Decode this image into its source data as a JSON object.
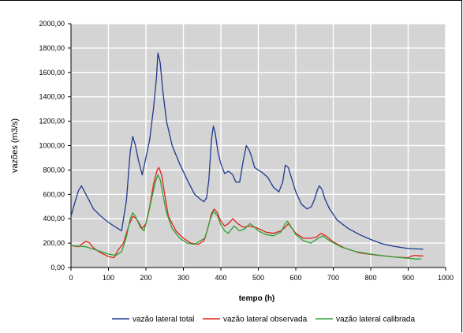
{
  "chart_data": {
    "type": "line",
    "xlabel": "tempo (h)",
    "ylabel": "vazões (m3/s)",
    "xlim": [
      0,
      1000
    ],
    "ylim": [
      0,
      2000
    ],
    "x_ticks": [
      "0",
      "100",
      "200",
      "300",
      "400",
      "500",
      "600",
      "700",
      "800",
      "900",
      "1000"
    ],
    "y_ticks": [
      "0,00",
      "200,00",
      "400,00",
      "600,00",
      "800,00",
      "1000,00",
      "1200,00",
      "1400,00",
      "1600,00",
      "1800,00",
      "2000,00"
    ],
    "grid": true,
    "legend_position": "bottom",
    "series": [
      {
        "name": "vazão lateral total",
        "color": "#1f3a8f",
        "x": [
          0,
          10,
          20,
          28,
          40,
          60,
          80,
          100,
          120,
          135,
          148,
          158,
          165,
          172,
          180,
          190,
          200,
          210,
          220,
          228,
          232,
          238,
          245,
          255,
          270,
          290,
          310,
          330,
          345,
          355,
          362,
          368,
          375,
          380,
          385,
          392,
          400,
          410,
          420,
          432,
          440,
          450,
          460,
          468,
          476,
          483,
          490,
          500,
          510,
          525,
          540,
          555,
          565,
          572,
          580,
          590,
          600,
          615,
          630,
          642,
          650,
          658,
          663,
          670,
          678,
          690,
          710,
          740,
          770,
          800,
          830,
          860,
          890,
          910,
          925,
          940
        ],
        "y": [
          420,
          530,
          630,
          670,
          600,
          480,
          420,
          370,
          330,
          300,
          550,
          950,
          1075,
          1000,
          880,
          760,
          900,
          1050,
          1300,
          1550,
          1760,
          1680,
          1450,
          1200,
          1000,
          850,
          720,
          600,
          560,
          540,
          570,
          720,
          1050,
          1160,
          1100,
          950,
          850,
          770,
          790,
          760,
          700,
          700,
          880,
          1000,
          960,
          900,
          820,
          800,
          780,
          740,
          660,
          620,
          700,
          840,
          820,
          720,
          620,
          520,
          480,
          500,
          560,
          640,
          670,
          640,
          560,
          480,
          390,
          320,
          270,
          230,
          195,
          175,
          160,
          155,
          152,
          150
        ]
      },
      {
        "name": "vazão lateral observada",
        "color": "#e2221b",
        "x": [
          0,
          20,
          30,
          40,
          50,
          60,
          80,
          100,
          115,
          125,
          140,
          155,
          165,
          175,
          190,
          200,
          210,
          220,
          230,
          235,
          242,
          250,
          260,
          280,
          300,
          320,
          340,
          355,
          365,
          375,
          382,
          390,
          400,
          410,
          420,
          432,
          445,
          460,
          475,
          490,
          500,
          520,
          540,
          560,
          572,
          580,
          590,
          600,
          620,
          640,
          655,
          668,
          680,
          700,
          730,
          770,
          820,
          870,
          900,
          910,
          920,
          930,
          940
        ],
        "y": [
          180,
          170,
          195,
          215,
          200,
          160,
          120,
          90,
          80,
          140,
          200,
          350,
          420,
          400,
          320,
          360,
          500,
          680,
          800,
          820,
          760,
          600,
          420,
          300,
          240,
          200,
          190,
          220,
          320,
          440,
          480,
          450,
          380,
          340,
          360,
          400,
          360,
          330,
          340,
          330,
          320,
          290,
          280,
          300,
          330,
          360,
          320,
          280,
          240,
          240,
          250,
          280,
          260,
          210,
          160,
          120,
          100,
          85,
          80,
          95,
          100,
          95,
          95
        ]
      },
      {
        "name": "vazão lateral calibrada",
        "color": "#2ea236",
        "x": [
          0,
          20,
          40,
          60,
          80,
          100,
          120,
          135,
          148,
          158,
          165,
          172,
          185,
          195,
          205,
          215,
          225,
          232,
          238,
          245,
          255,
          270,
          290,
          310,
          330,
          345,
          358,
          370,
          380,
          390,
          400,
          410,
          420,
          435,
          450,
          465,
          478,
          490,
          500,
          520,
          540,
          560,
          572,
          578,
          588,
          600,
          620,
          640,
          660,
          672,
          690,
          720,
          760,
          800,
          850,
          900,
          920,
          935
        ],
        "y": [
          180,
          175,
          170,
          150,
          130,
          110,
          100,
          130,
          250,
          400,
          450,
          420,
          330,
          300,
          420,
          560,
          700,
          760,
          720,
          600,
          450,
          320,
          240,
          200,
          190,
          220,
          240,
          380,
          460,
          430,
          350,
          300,
          280,
          340,
          300,
          320,
          360,
          330,
          300,
          270,
          260,
          290,
          360,
          380,
          330,
          270,
          220,
          200,
          240,
          260,
          220,
          170,
          130,
          110,
          90,
          75,
          70,
          70
        ]
      }
    ]
  }
}
